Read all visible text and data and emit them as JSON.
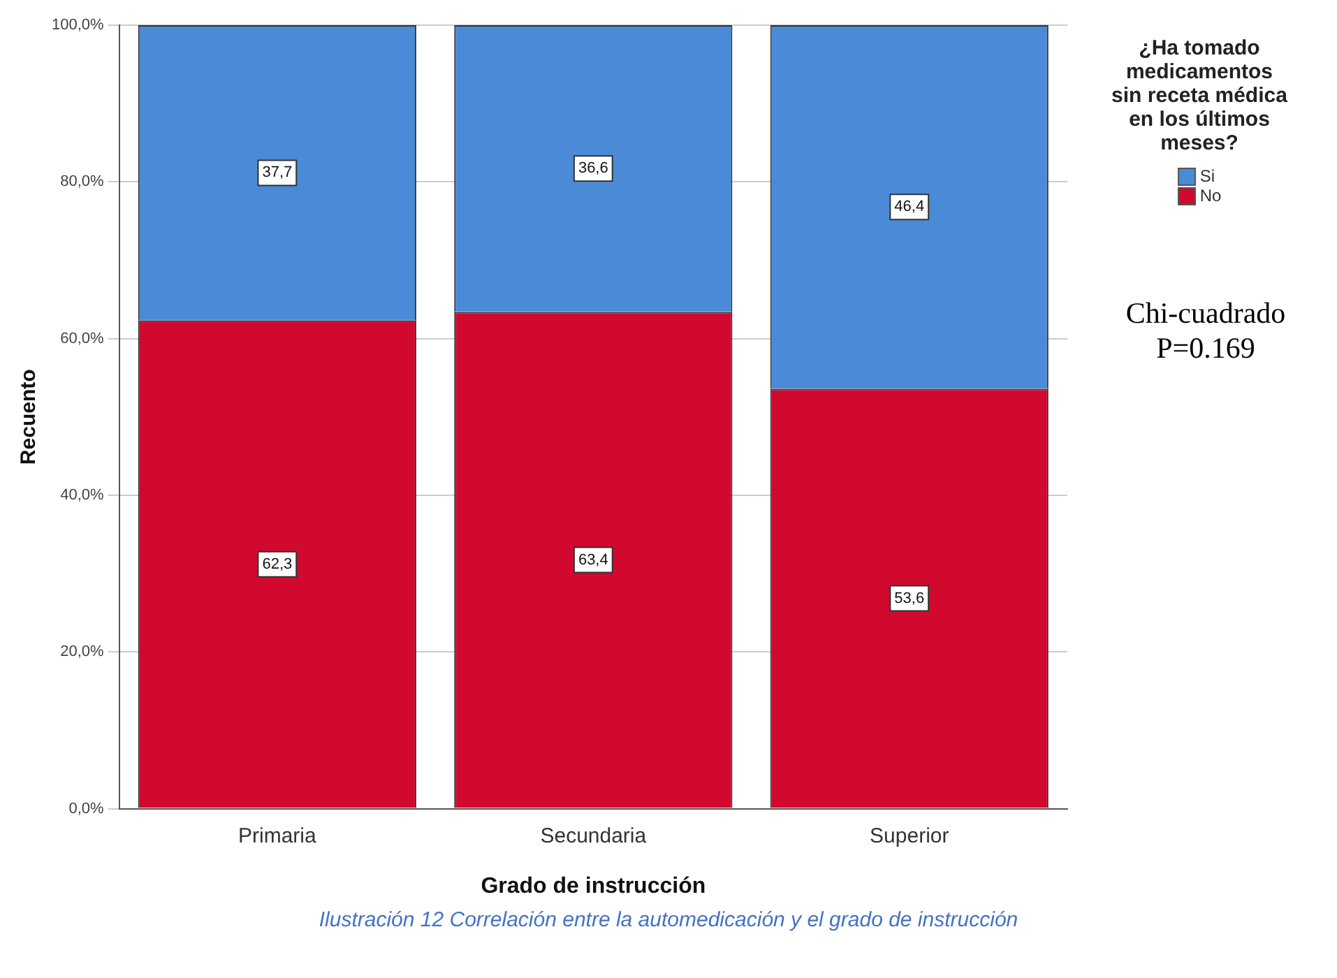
{
  "chart_data": {
    "type": "bar",
    "xlabel": "Grado de instrucción",
    "ylabel": "Recuento",
    "legend_title": "¿Ha tomado medicamentos sin receta médica en los últimos meses?",
    "categories": [
      "Primaria",
      "Secundaria",
      "Superior"
    ],
    "stacked": true,
    "series": [
      {
        "name": "No",
        "color": "#d2092f",
        "values": [
          62.3,
          63.4,
          53.6
        ],
        "value_labels": [
          "62,3",
          "63,4",
          "53,6"
        ]
      },
      {
        "name": "Si",
        "color": "#4a8ad6",
        "values": [
          37.7,
          36.6,
          46.4
        ],
        "value_labels": [
          "37,7",
          "36,6",
          "46,4"
        ]
      }
    ],
    "ylim": [
      0,
      100
    ],
    "yticks": [
      {
        "value": 0,
        "label": "0,0%"
      },
      {
        "value": 20,
        "label": "20,0%"
      },
      {
        "value": 40,
        "label": "40,0%"
      },
      {
        "value": 60,
        "label": "60,0%"
      },
      {
        "value": 80,
        "label": "80,0%"
      },
      {
        "value": 100,
        "label": "100,0%"
      }
    ],
    "grid": "y",
    "legend": "right",
    "annotations": [
      "Chi-cuadrado P=0.169",
      "Ilustración 12 Correlación entre la automedicación y el grado de instrucción"
    ]
  }
}
